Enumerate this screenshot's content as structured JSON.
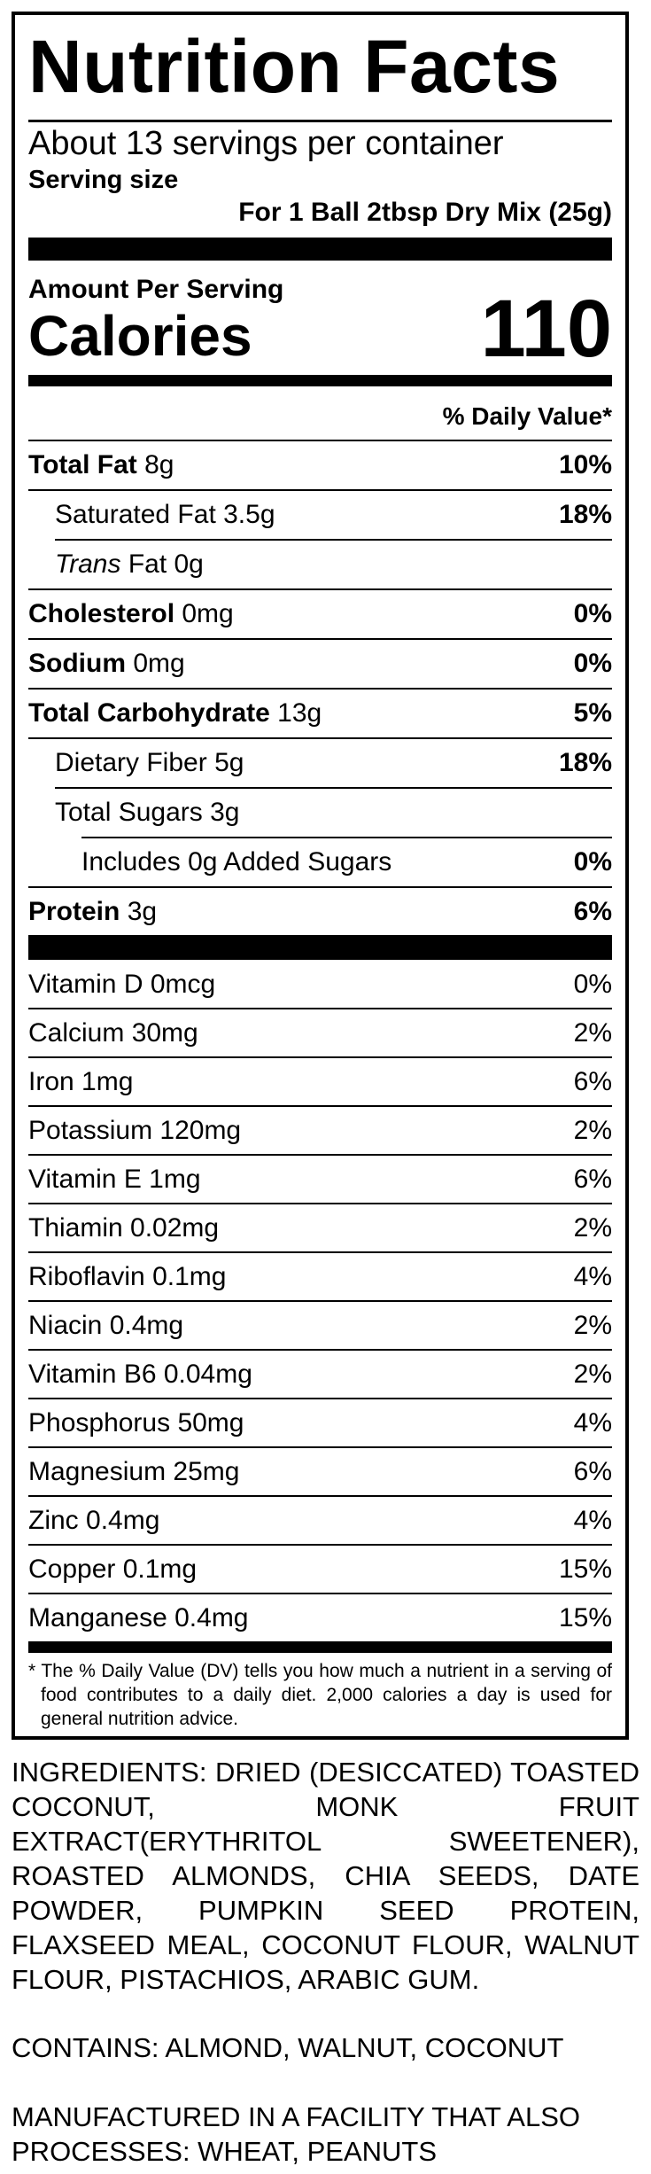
{
  "label": {
    "title": "Nutrition Facts",
    "servings_per_container": "About 13 servings per container",
    "serving_size_label": "Serving size",
    "serving_size_value": "For 1 Ball 2tbsp Dry Mix (25g)",
    "amount_per_serving": "Amount Per Serving",
    "calories_label": "Calories",
    "calories_value": "110",
    "daily_value_header": "% Daily Value*",
    "nutrients": [
      {
        "name": "Total Fat",
        "amount": "8g",
        "dv": "10%"
      },
      {
        "name": "Saturated Fat",
        "amount": "3.5g",
        "dv": "18%"
      },
      {
        "name": "Trans",
        "amount": "Fat 0g",
        "dv": ""
      },
      {
        "name": "Cholesterol",
        "amount": "0mg",
        "dv": "0%"
      },
      {
        "name": "Sodium",
        "amount": "0mg",
        "dv": "0%"
      },
      {
        "name": "Total Carbohydrate",
        "amount": "13g",
        "dv": "5%"
      },
      {
        "name": "Dietary Fiber",
        "amount": "5g",
        "dv": "18%"
      },
      {
        "name": "Total Sugars",
        "amount": "3g",
        "dv": ""
      },
      {
        "name": "Includes 0g Added Sugars",
        "amount": "",
        "dv": "0%"
      },
      {
        "name": "Protein",
        "amount": "3g",
        "dv": "6%"
      }
    ],
    "vitamins": [
      {
        "text": "Vitamin D 0mcg",
        "dv": "0%"
      },
      {
        "text": "Calcium 30mg",
        "dv": "2%"
      },
      {
        "text": "Iron 1mg",
        "dv": "6%"
      },
      {
        "text": "Potassium 120mg",
        "dv": "2%"
      },
      {
        "text": "Vitamin E 1mg",
        "dv": "6%"
      },
      {
        "text": "Thiamin 0.02mg",
        "dv": "2%"
      },
      {
        "text": "Riboflavin 0.1mg",
        "dv": "4%"
      },
      {
        "text": "Niacin 0.4mg",
        "dv": "2%"
      },
      {
        "text": "Vitamin B6 0.04mg",
        "dv": "2%"
      },
      {
        "text": "Phosphorus 50mg",
        "dv": "4%"
      },
      {
        "text": "Magnesium 25mg",
        "dv": "6%"
      },
      {
        "text": "Zinc 0.4mg",
        "dv": "4%"
      },
      {
        "text": "Copper 0.1mg",
        "dv": "15%"
      },
      {
        "text": "Manganese 0.4mg",
        "dv": "15%"
      }
    ],
    "footnote": "* The % Daily Value (DV) tells you how much a nutrient in a serving of food contributes to a daily diet. 2,000 calories a day is used for general nutrition advice."
  },
  "ingredients": "INGREDIENTS: DRIED (DESICCATED) TOASTED COCONUT, MONK FRUIT EXTRACT(ERYTHRITOL SWEETENER), ROASTED ALMONDS, CHIA SEEDS, DATE POWDER, PUMPKIN SEED PROTEIN, FLAXSEED MEAL, COCONUT FLOUR, WALNUT FLOUR, PISTACHIOS, ARABIC GUM.",
  "contains": "CONTAINS: ALMOND, WALNUT, COCONUT",
  "facility_warning": "MANUFACTURED IN A FACILITY THAT ALSO PROCESSES: WHEAT, PEANUTS"
}
